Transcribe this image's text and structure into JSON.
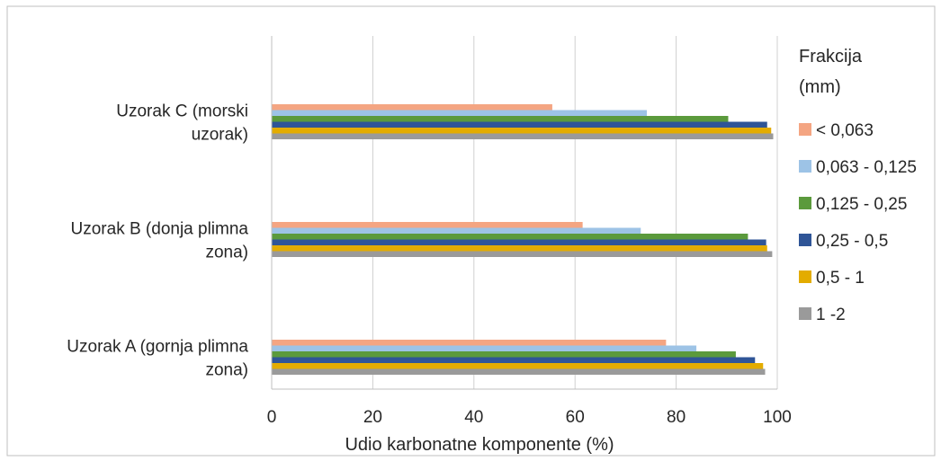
{
  "chart_data": {
    "type": "bar",
    "orientation": "horizontal",
    "title": "",
    "xlabel": "Udio karbonatne komponente (%)",
    "ylabel": "",
    "xlim": [
      0,
      100
    ],
    "x_ticks": [
      "0",
      "20",
      "40",
      "60",
      "80",
      "100"
    ],
    "grid": true,
    "legend_position": "right",
    "legend_title": [
      "Frakcija",
      "(mm)"
    ],
    "categories": [
      [
        "Uzorak A (gornja plimna",
        "zona)"
      ],
      [
        "Uzorak B (donja plimna",
        "zona)"
      ],
      [
        "Uzorak C (morski",
        "uzorak)"
      ]
    ],
    "series": [
      {
        "name": "< 0,063",
        "color": "#F4A582",
        "values": [
          78,
          61.5,
          55.5
        ]
      },
      {
        "name": "0,063 - 0,125",
        "color": "#9DC3E6",
        "values": [
          84,
          73,
          74.2
        ]
      },
      {
        "name": "0,125 - 0,25",
        "color": "#5B9A3C",
        "values": [
          91.8,
          94.2,
          90.3
        ]
      },
      {
        "name": "0,25 - 0,5",
        "color": "#2F5597",
        "values": [
          95.6,
          97.8,
          98
        ]
      },
      {
        "name": "0,5 - 1",
        "color": "#E3AC00",
        "values": [
          97.2,
          98,
          98.8
        ]
      },
      {
        "name": "1 -2",
        "color": "#9A9A9A",
        "values": [
          97.6,
          99,
          99.2
        ]
      }
    ]
  }
}
